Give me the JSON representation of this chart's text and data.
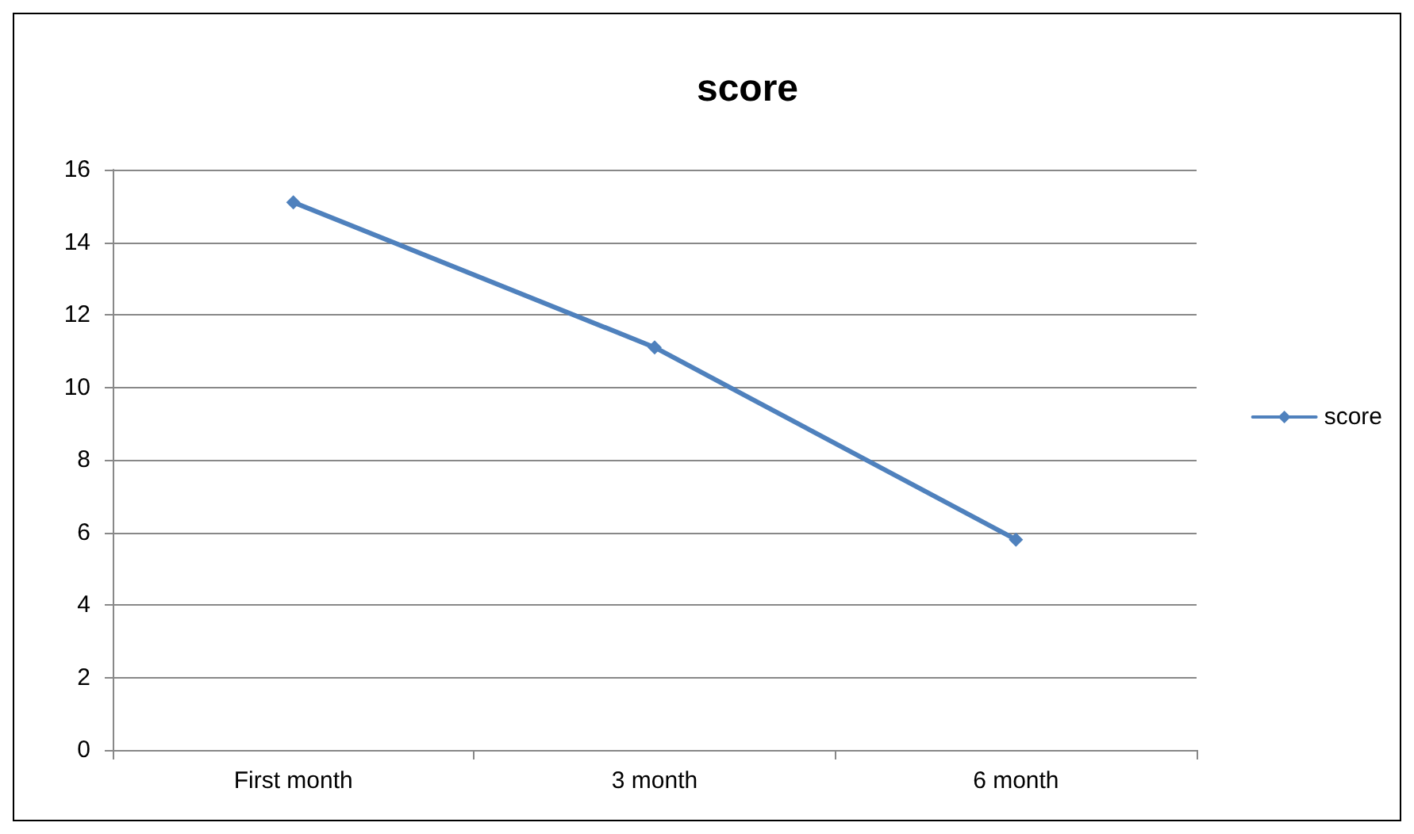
{
  "chart_data": {
    "type": "line",
    "title": "score",
    "categories": [
      "First month",
      "3 month",
      "6 month"
    ],
    "series": [
      {
        "name": "score",
        "color": "#4f81bd",
        "values": [
          15.1,
          11.1,
          5.8
        ]
      }
    ],
    "ylim": [
      0,
      16
    ],
    "yticks": [
      0,
      2,
      4,
      6,
      8,
      10,
      12,
      14,
      16
    ],
    "grid": "y",
    "legend": "right",
    "marker": "diamond",
    "line_style": "solid"
  }
}
